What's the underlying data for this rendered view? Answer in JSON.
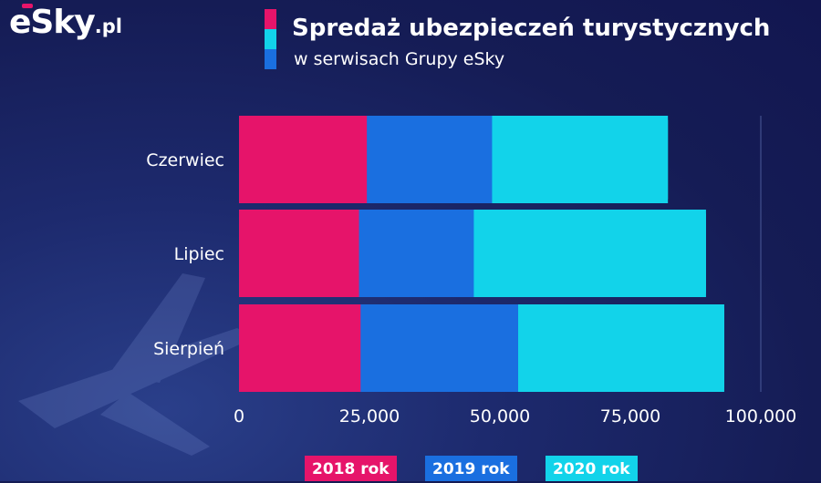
{
  "logo": {
    "main": "eSky",
    "suffix": ".pl"
  },
  "header": {
    "title": "Spredaż ubezpieczeń turystycznych",
    "subtitle": "w serwisach Grupy eSky"
  },
  "colors": {
    "2018": "#e6146a",
    "2019": "#1a6fe0",
    "2020": "#12d3ea"
  },
  "chart_data": {
    "type": "bar",
    "orientation": "horizontal",
    "stacked": true,
    "categories": [
      "Czerwiec",
      "Lipiec",
      "Sierpień"
    ],
    "series": [
      {
        "name": "2018 rok",
        "values": [
          24500,
          23000,
          23300
        ]
      },
      {
        "name": "2019 rok",
        "values": [
          24000,
          22000,
          30200
        ]
      },
      {
        "name": "2020 rok",
        "values": [
          33700,
          44500,
          39500
        ]
      }
    ],
    "xlim": [
      0,
      100000
    ],
    "xticks": [
      "0",
      "25,000",
      "50,000",
      "75,000",
      "100,000"
    ],
    "xtick_values": [
      0,
      25000,
      50000,
      75000,
      100000
    ],
    "legend_position": "bottom",
    "grid": false
  }
}
